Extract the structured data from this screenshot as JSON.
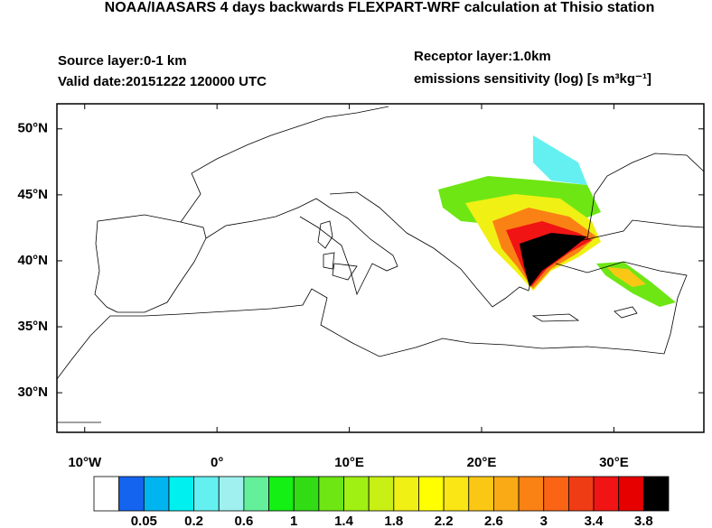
{
  "header": {
    "title": "NOAA/IAASARS 4 days backwards FLEXPART-WRF calculation at Thisio station",
    "source_layer": "Source layer:0-1 km",
    "valid_date": "Valid date:20151222 120000 UTC",
    "receptor_layer": "Receptor layer:1.0km",
    "units": "emissions sensitivity (log) [s m³kg⁻¹]"
  },
  "map": {
    "xlim": [
      -12.1,
      36.8
    ],
    "ylim": [
      27.0,
      51.9
    ],
    "xticks": [
      {
        "value": -10,
        "label": "10°W"
      },
      {
        "value": 0,
        "label": "0°"
      },
      {
        "value": 10,
        "label": "10°E"
      },
      {
        "value": 20,
        "label": "20°E"
      },
      {
        "value": 30,
        "label": "30°E"
      }
    ],
    "yticks": [
      {
        "value": 50,
        "label": "50°N"
      },
      {
        "value": 45,
        "label": "45°N"
      },
      {
        "value": 40,
        "label": "40°N"
      },
      {
        "value": 35,
        "label": "35°N"
      },
      {
        "value": 30,
        "label": "30°N"
      }
    ]
  },
  "colorbar": {
    "colors": [
      "#ffffff",
      "#1464f0",
      "#00b4f0",
      "#00f0f0",
      "#64f0f0",
      "#a0f0f0",
      "#64f09a",
      "#14f014",
      "#32dc14",
      "#6ee614",
      "#a0f014",
      "#c8f014",
      "#f0f014",
      "#ffff00",
      "#fae614",
      "#fac814",
      "#faaa14",
      "#fa8214",
      "#fa6414",
      "#f03c14",
      "#f01414",
      "#e60000",
      "#000000"
    ],
    "labels": [
      0.05,
      0.2,
      0.6,
      1,
      1.4,
      1.8,
      2.2,
      2.6,
      3,
      3.4,
      3.8
    ]
  }
}
